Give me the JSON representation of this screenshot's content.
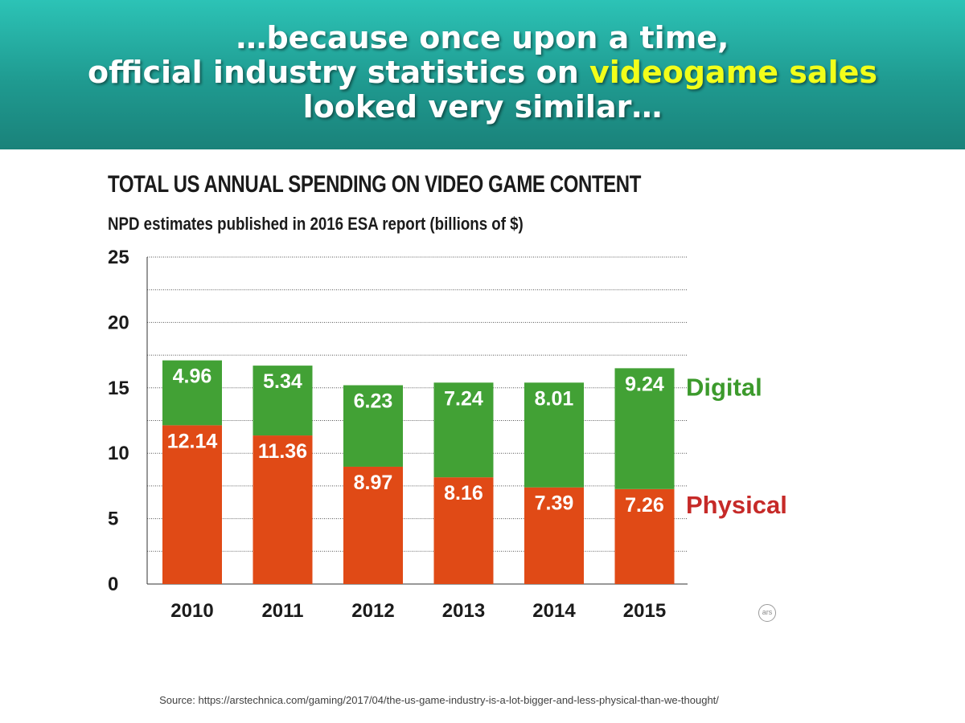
{
  "banner": {
    "line1": "…because once upon a time,",
    "line2_prefix": "official industry statistics on ",
    "line2_highlight": "videogame sales",
    "line3": "looked very similar…",
    "highlight_color": "#f2ff1a"
  },
  "chart_data": {
    "type": "bar",
    "stacked": true,
    "title": "TOTAL US ANNUAL SPENDING ON VIDEO GAME CONTENT",
    "subtitle": "NPD estimates published in 2016 ESA report (billions of $)",
    "categories": [
      "2010",
      "2011",
      "2012",
      "2013",
      "2014",
      "2015"
    ],
    "series": [
      {
        "name": "Physical",
        "color": "#e04a16",
        "label_color": "#c62a28",
        "values": [
          12.14,
          11.36,
          8.97,
          8.16,
          7.39,
          7.26
        ]
      },
      {
        "name": "Digital",
        "color": "#42a135",
        "label_color": "#3c9a2c",
        "values": [
          4.96,
          5.34,
          6.23,
          7.24,
          8.01,
          9.24
        ]
      }
    ],
    "ylim": [
      0,
      25
    ],
    "yticks": [
      0,
      5,
      10,
      15,
      20,
      25
    ],
    "grid": true,
    "legend": "right"
  },
  "logo_text": "ars",
  "source": "Source: https://arstechnica.com/gaming/2017/04/the-us-game-industry-is-a-lot-bigger-and-less-physical-than-we-thought/"
}
